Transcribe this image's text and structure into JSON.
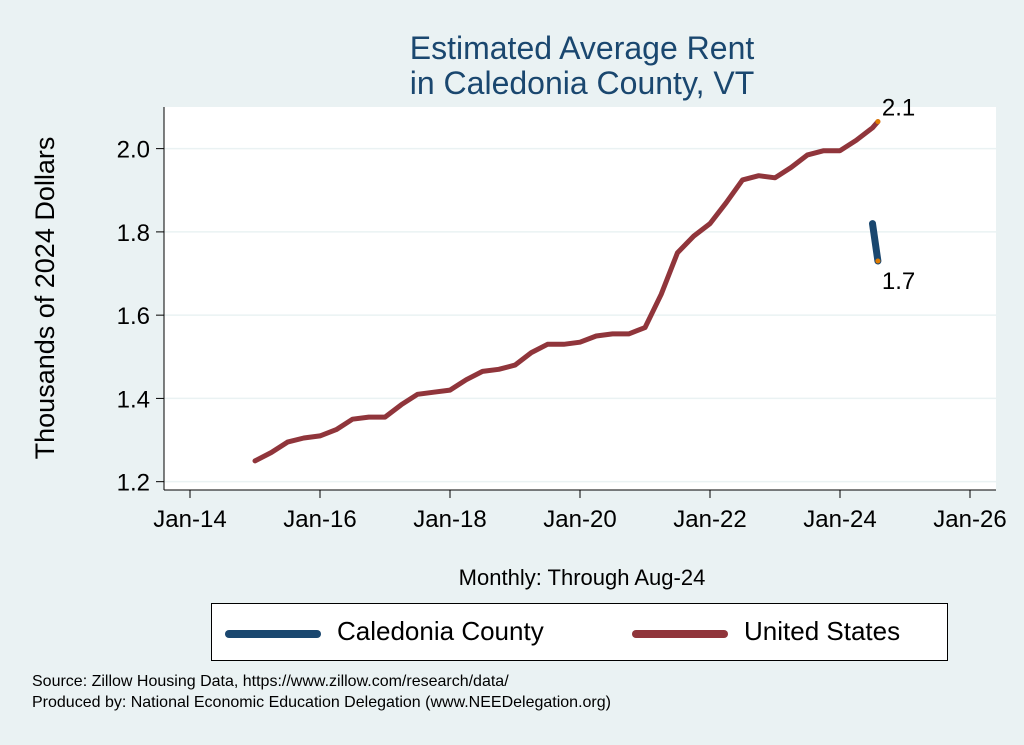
{
  "chart_data": {
    "type": "line",
    "title_lines": [
      "Estimated Average Rent",
      "in Caledonia County, VT"
    ],
    "ylabel": "Thousands of 2024 Dollars",
    "xlabel": "Monthly: Through Aug-24",
    "ylim": [
      1.18,
      2.1
    ],
    "yticks": [
      1.2,
      1.4,
      1.6,
      1.8,
      2.0
    ],
    "ytick_labels": [
      "1.2",
      "1.4",
      "1.6",
      "1.8",
      "2.0"
    ],
    "xticks": [
      2014,
      2016,
      2018,
      2020,
      2022,
      2024,
      2026
    ],
    "xtick_labels": [
      "Jan-14",
      "Jan-16",
      "Jan-18",
      "Jan-20",
      "Jan-22",
      "Jan-24",
      "Jan-26"
    ],
    "xlim": [
      2013.6,
      2026.4
    ],
    "grid": true,
    "series": [
      {
        "name": "Caledonia County",
        "color": "#1a476f",
        "x": [
          2024.5,
          2024.583
        ],
        "y": [
          1.82,
          1.73
        ],
        "end_label": "1.7"
      },
      {
        "name": "United States",
        "color": "#90353b",
        "x": [
          2015.0,
          2015.25,
          2015.5,
          2015.75,
          2016.0,
          2016.25,
          2016.5,
          2016.75,
          2017.0,
          2017.25,
          2017.5,
          2017.75,
          2018.0,
          2018.25,
          2018.5,
          2018.75,
          2019.0,
          2019.25,
          2019.5,
          2019.75,
          2020.0,
          2020.25,
          2020.5,
          2020.75,
          2021.0,
          2021.25,
          2021.5,
          2021.75,
          2022.0,
          2022.25,
          2022.5,
          2022.75,
          2023.0,
          2023.25,
          2023.5,
          2023.75,
          2024.0,
          2024.25,
          2024.5,
          2024.583
        ],
        "y": [
          1.25,
          1.27,
          1.295,
          1.305,
          1.31,
          1.325,
          1.35,
          1.355,
          1.355,
          1.385,
          1.41,
          1.415,
          1.42,
          1.445,
          1.465,
          1.47,
          1.48,
          1.51,
          1.53,
          1.53,
          1.535,
          1.55,
          1.555,
          1.555,
          1.57,
          1.65,
          1.75,
          1.79,
          1.82,
          1.87,
          1.925,
          1.935,
          1.93,
          1.955,
          1.985,
          1.995,
          1.995,
          2.02,
          2.05,
          2.065
        ],
        "end_label": "2.1"
      }
    ],
    "legend": {
      "placement": "bottom",
      "entries": [
        "Caledonia County",
        "United States"
      ]
    },
    "notes": [
      "Source: Zillow Housing Data, https://www.zillow.com/research/data/",
      "Produced by: National Economic Education Delegation (www.NEEDelegation.org)"
    ]
  }
}
